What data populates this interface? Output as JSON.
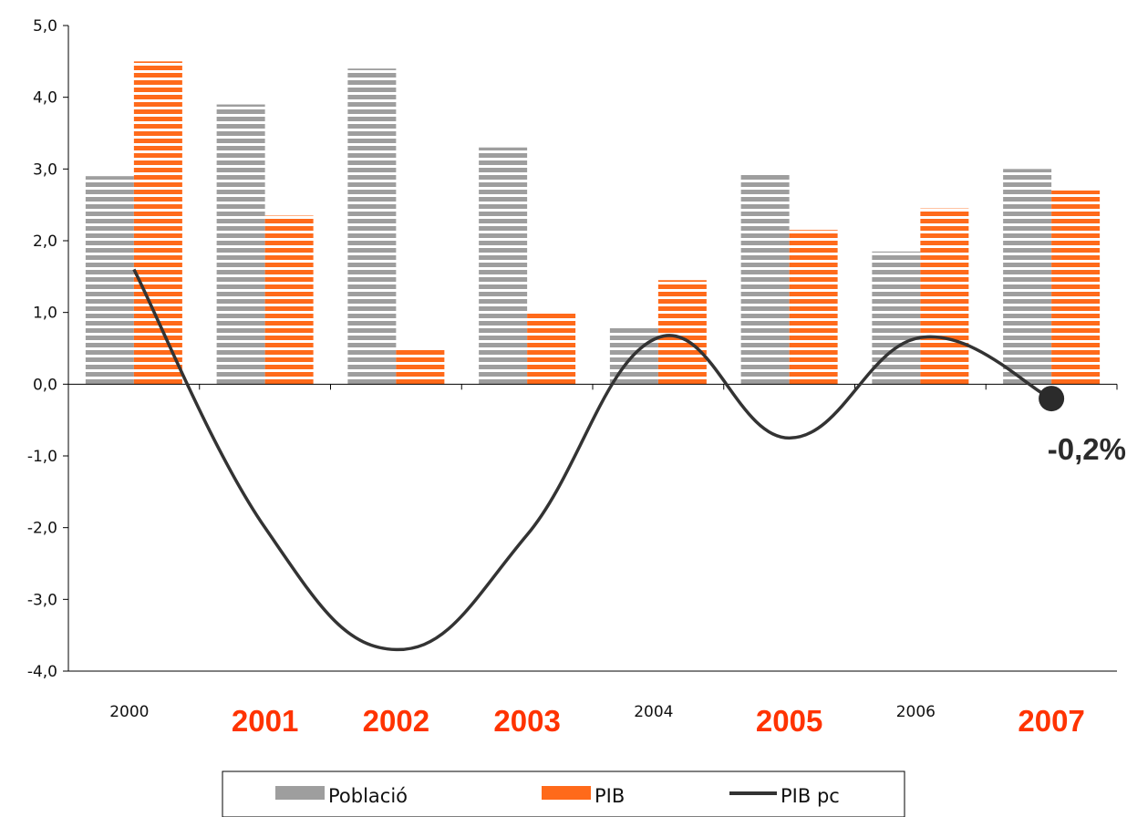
{
  "chart_data": {
    "type": "bar",
    "categories": [
      "2000",
      "2001",
      "2002",
      "2003",
      "2004",
      "2005",
      "2006",
      "2007"
    ],
    "highlighted_categories": [
      "2001",
      "2002",
      "2003",
      "2005",
      "2007"
    ],
    "highlight_color": "#ff3300",
    "series": [
      {
        "name": "Població",
        "kind": "bar",
        "color": "#9e9e9e",
        "pattern": "horizontal-stripes",
        "values": [
          2.9,
          3.9,
          4.4,
          3.3,
          0.8,
          2.95,
          1.85,
          3.0
        ]
      },
      {
        "name": "PIB",
        "kind": "bar",
        "color": "#ff6a1a",
        "pattern": "horizontal-stripes",
        "values": [
          4.5,
          2.35,
          0.5,
          1.0,
          1.45,
          2.15,
          2.45,
          2.7
        ]
      },
      {
        "name": "PIB pc",
        "kind": "line",
        "color": "#333333",
        "values": [
          1.6,
          -2.0,
          -3.7,
          -2.1,
          0.65,
          -0.75,
          0.65,
          -0.2
        ]
      }
    ],
    "ylim": [
      -4.0,
      5.0
    ],
    "yticks": [
      -4.0,
      -3.0,
      -2.0,
      -1.0,
      0.0,
      1.0,
      2.0,
      3.0,
      4.0,
      5.0
    ],
    "ytick_labels": [
      "-4,0",
      "-3,0",
      "-2,0",
      "-1,0",
      "0,0",
      "1,0",
      "2,0",
      "3,0",
      "4,0",
      "5,0"
    ],
    "annotation": {
      "text": "-0,2%",
      "category": "2007",
      "series": "PIB pc",
      "value": -0.2
    },
    "legend": {
      "position": "bottom",
      "entries": [
        "Població",
        "PIB",
        "PIB pc"
      ]
    },
    "grid": false
  }
}
